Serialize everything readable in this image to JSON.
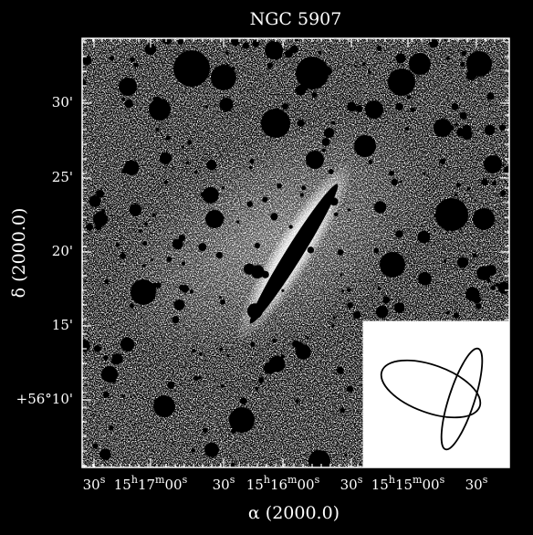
{
  "title": "NGC 5907",
  "y_axis": {
    "label": "δ (2000.0)",
    "ticks": [
      "30'",
      "25'",
      "20'",
      "15'",
      "+56°10'"
    ]
  },
  "x_axis": {
    "label": "α (2000.0)",
    "ticks": [
      [
        "30",
        "s"
      ],
      [
        "15",
        "h",
        "17",
        "m",
        "00",
        "s"
      ],
      [
        "30",
        "s"
      ],
      [
        "15",
        "h",
        "16",
        "m",
        "00",
        "s"
      ],
      [
        "30",
        "s"
      ],
      [
        "15",
        "h",
        "15",
        "m",
        "00",
        "s"
      ],
      [
        "30",
        "s"
      ]
    ]
  }
}
